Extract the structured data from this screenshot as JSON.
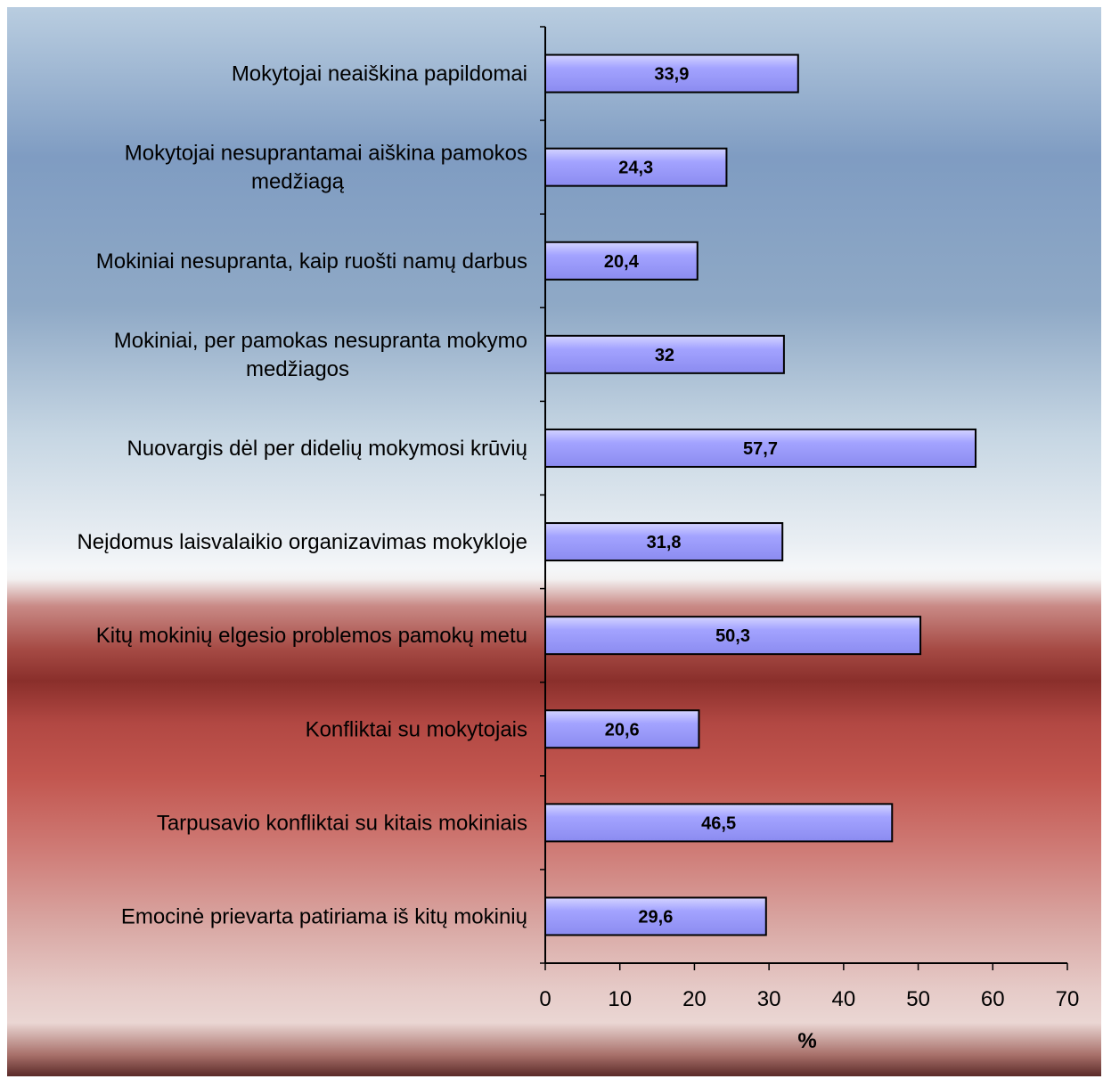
{
  "chart_data": {
    "type": "bar",
    "orientation": "horizontal",
    "categories": [
      [
        "Mokytojai neaiškina papildomai"
      ],
      [
        "Mokytojai nesuprantamai aiškina pamokos",
        "medžiagą"
      ],
      [
        "Mokiniai nesupranta, kaip ruošti namų darbus"
      ],
      [
        "Mokiniai, per pamokas nesupranta mokymo",
        "medžiagos"
      ],
      [
        "Nuovargis dėl per didelių mokymosi krūvių"
      ],
      [
        "Neįdomus laisvalaikio organizavimas mokykloje"
      ],
      [
        "Kitų mokinių elgesio problemos pamokų metu"
      ],
      [
        "Konfliktai su mokytojais"
      ],
      [
        "Tarpusavio konfliktai su kitais mokiniais"
      ],
      [
        "Emocinė prievarta patiriama iš kitų mokinių"
      ]
    ],
    "values": [
      33.9,
      24.3,
      20.4,
      32,
      57.7,
      31.8,
      50.3,
      20.6,
      46.5,
      29.6
    ],
    "value_labels": [
      "33,9",
      "24,3",
      "20,4",
      "32",
      "57,7",
      "31,8",
      "50,3",
      "20,6",
      "46,5",
      "29,6"
    ],
    "xlabel": "%",
    "xlim": [
      0,
      70
    ],
    "xticks": [
      "0",
      "10",
      "20",
      "30",
      "40",
      "50",
      "60",
      "70"
    ],
    "bar_color": "#9999ff",
    "grid": false,
    "legend": "none"
  }
}
